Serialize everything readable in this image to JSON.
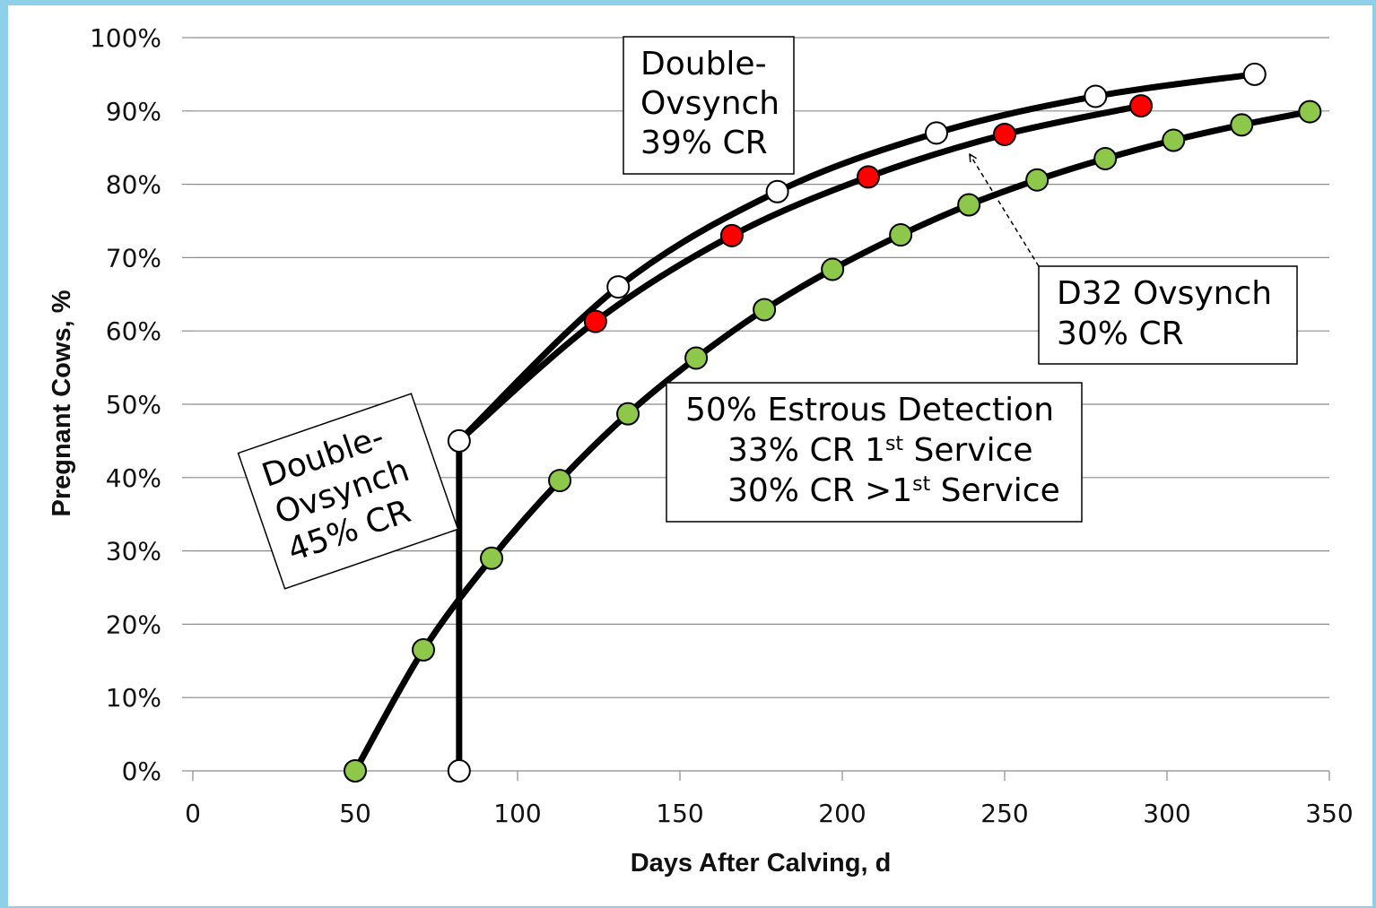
{
  "colors": {
    "frame": "#8ecfe9",
    "grid": "#8c8c8c",
    "line": "#000000",
    "marker_green": "#8dc84a",
    "marker_red": "#ff0000",
    "marker_white": "#ffffff"
  },
  "chart_data": {
    "type": "line",
    "xlabel": "Days After Calving, d",
    "ylabel": "Pregnant Cows, %",
    "xlim": [
      0,
      350
    ],
    "ylim": [
      0,
      100
    ],
    "x_ticks": [
      "0",
      "50",
      "100",
      "150",
      "200",
      "250",
      "300",
      "350"
    ],
    "y_ticks": [
      "0%",
      "10%",
      "20%",
      "30%",
      "40%",
      "50%",
      "60%",
      "70%",
      "80%",
      "90%",
      "100%"
    ],
    "grid": true,
    "legend": "none",
    "series": [
      {
        "marker": "white",
        "x": [
          82,
          82,
          131,
          180,
          229,
          278,
          327
        ],
        "y": [
          0,
          45,
          66,
          79,
          87,
          92,
          95
        ]
      },
      {
        "marker": "red",
        "x": [
          124,
          166,
          208,
          250,
          292
        ],
        "y": [
          61.3,
          73,
          81,
          86.8,
          90.7
        ]
      },
      {
        "marker": "green",
        "x": [
          50,
          71,
          92,
          113,
          134,
          155,
          176,
          197,
          218,
          239,
          260,
          281,
          302,
          323,
          344
        ],
        "y": [
          0,
          16.5,
          29,
          39.6,
          48.7,
          56.3,
          62.9,
          68.4,
          73.1,
          77.2,
          80.6,
          83.5,
          86,
          88.1,
          89.9
        ]
      }
    ],
    "annotations": {
      "double_ovsynch_39": {
        "lines": [
          "Double-",
          "Ovsynch",
          "39% CR"
        ]
      },
      "double_ovsynch_45": {
        "lines": [
          "Double-",
          "Ovsynch",
          "45% CR"
        ]
      },
      "d32": {
        "lines": [
          "D32 Ovsynch",
          "30% CR"
        ]
      },
      "estrous": {
        "line1": "50% Estrous Detection",
        "line2_pre": "33% CR 1",
        "line2_sup": "st",
        "line2_post": " Service",
        "line3_pre": "30% CR >1",
        "line3_sup": "st",
        "line3_post": " Service"
      }
    }
  }
}
